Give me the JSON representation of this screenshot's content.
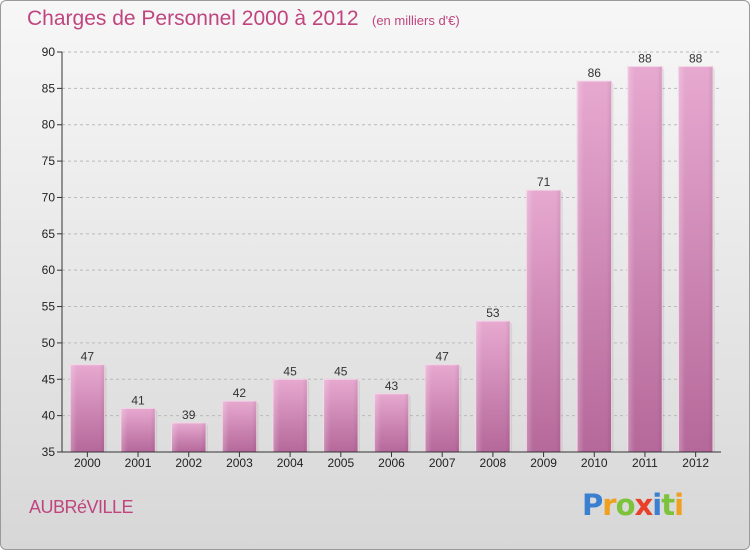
{
  "title": "Charges de Personnel 2000 à 2012",
  "subtitle": "(en milliers d'€)",
  "town": "AUBRéVILLE",
  "logo": {
    "letters": [
      "P",
      "r",
      "o",
      "x",
      "i",
      "t",
      "i"
    ],
    "colors": [
      "#3a7fd0",
      "#f0a020",
      "#7cc23a",
      "#e8402a",
      "#3a7fd0",
      "#7cc23a",
      "#f0a020"
    ]
  },
  "chart_data": {
    "type": "bar",
    "categories": [
      "2000",
      "2001",
      "2002",
      "2003",
      "2004",
      "2005",
      "2006",
      "2007",
      "2008",
      "2009",
      "2010",
      "2011",
      "2012"
    ],
    "values": [
      47,
      41,
      39,
      42,
      45,
      45,
      43,
      47,
      53,
      71,
      86,
      88,
      88
    ],
    "ylim": [
      35,
      90
    ],
    "yticks": [
      35,
      40,
      45,
      50,
      55,
      60,
      65,
      70,
      75,
      80,
      85,
      90
    ],
    "bar_color": "#d98dbb",
    "grid": "horizontal dashed"
  }
}
